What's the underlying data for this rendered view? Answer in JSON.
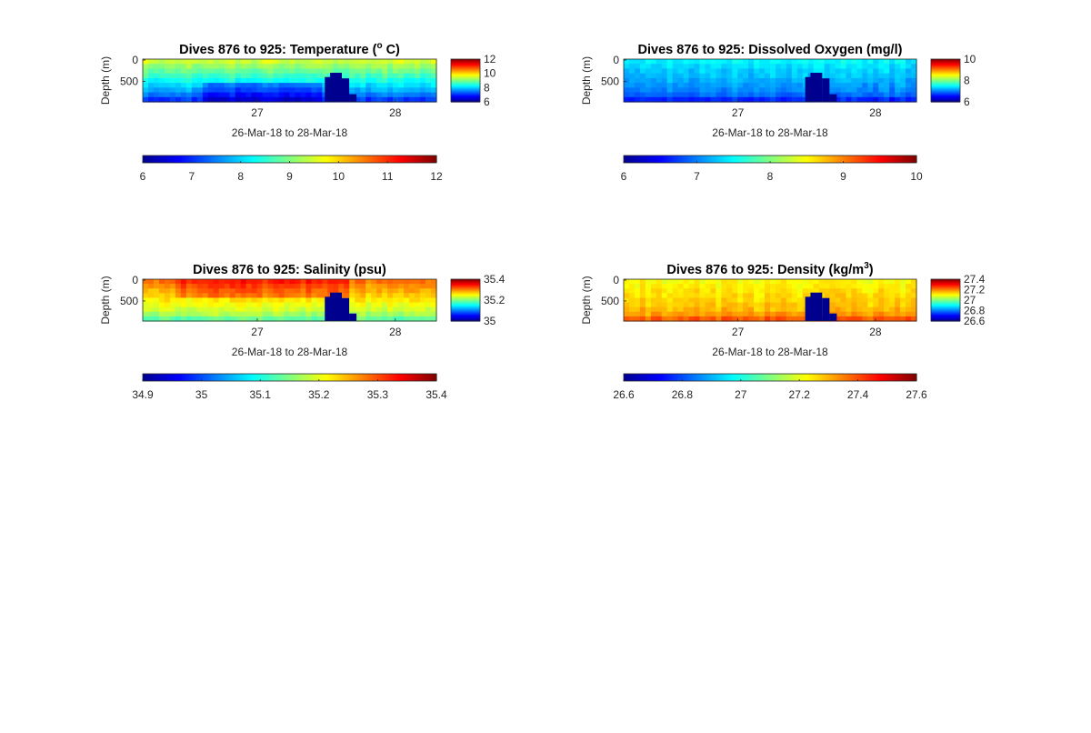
{
  "colormap": [
    "#00008f",
    "#0000ff",
    "#00ffff",
    "#ffff00",
    "#ff0000",
    "#800000"
  ],
  "panels": [
    {
      "title_parts": [
        "Dives 876 to 925: Temperature (",
        "o",
        " C)"
      ],
      "title_sup_index": 1,
      "xlabel": "26-Mar-18 to 28-Mar-18",
      "ylabel": "Depth (m)",
      "x_ticks": [
        "27",
        "28"
      ],
      "y_ticks": [
        "0",
        "500"
      ],
      "cbar_right_ticks": [
        "12",
        "10",
        "8",
        "6"
      ],
      "cbar_bottom_ticks": [
        "6",
        "7",
        "8",
        "9",
        "10",
        "11",
        "12"
      ],
      "clim": [
        6,
        12
      ],
      "surface_value": 9.6,
      "deep_value": 7.6,
      "bottom_value": 6.9
    },
    {
      "title_parts": [
        "Dives 876 to 925: Dissolved Oxygen (mg/l)"
      ],
      "title_sup_index": -1,
      "xlabel": "26-Mar-18 to 28-Mar-18",
      "ylabel": "Depth (m)",
      "x_ticks": [
        "27",
        "28"
      ],
      "y_ticks": [
        "0",
        "500"
      ],
      "cbar_right_ticks": [
        "10",
        "8",
        "6"
      ],
      "cbar_bottom_ticks": [
        "6",
        "7",
        "8",
        "9",
        "10"
      ],
      "clim": [
        6,
        10
      ],
      "surface_value": 7.5,
      "deep_value": 7.0,
      "bottom_value": 6.5
    },
    {
      "title_parts": [
        "Dives 876 to 925: Salinity (psu)"
      ],
      "title_sup_index": -1,
      "xlabel": "26-Mar-18 to 28-Mar-18",
      "ylabel": "Depth (m)",
      "x_ticks": [
        "27",
        "28"
      ],
      "y_ticks": [
        "0",
        "500"
      ],
      "cbar_right_ticks": [
        "35.4",
        "35.2",
        "35"
      ],
      "cbar_bottom_ticks": [
        "34.9",
        "35",
        "35.1",
        "35.2",
        "35.3",
        "35.4"
      ],
      "clim": [
        34.9,
        35.4
      ],
      "surface_value": 35.29,
      "deep_value": 35.18,
      "bottom_value": 35.12
    },
    {
      "title_parts": [
        "Dives 876 to 925: Density (kg/m",
        "3",
        ")"
      ],
      "title_sup_index": 1,
      "xlabel": "26-Mar-18 to 28-Mar-18",
      "ylabel": "Depth (m)",
      "x_ticks": [
        "27",
        "28"
      ],
      "y_ticks": [
        "0",
        "500"
      ],
      "cbar_right_ticks": [
        "27.4",
        "27.2",
        "27",
        "26.8",
        "26.6"
      ],
      "cbar_bottom_ticks": [
        "26.6",
        "26.8",
        "27",
        "27.2",
        "27.4",
        "27.6"
      ],
      "clim": [
        26.6,
        27.6
      ],
      "surface_value": 27.22,
      "deep_value": 27.3,
      "bottom_value": 27.42
    }
  ],
  "chart_data": [
    {
      "type": "heatmap",
      "title": "Dives 876 to 925: Temperature (o C)",
      "xlabel": "26-Mar-18 to 28-Mar-18",
      "ylabel": "Depth (m)",
      "x_range": [
        "26-Mar-18",
        "28-Mar-18"
      ],
      "x_ticks": [
        "27",
        "28"
      ],
      "y_ticks": [
        0,
        500
      ],
      "y_reversed": true,
      "colorbar_range": [
        6,
        12
      ],
      "approx_values": {
        "surface": 9.6,
        "deep": 7.6,
        "near_bottom": 6.9
      }
    },
    {
      "type": "heatmap",
      "title": "Dives 876 to 925: Dissolved Oxygen (mg/l)",
      "xlabel": "26-Mar-18 to 28-Mar-18",
      "ylabel": "Depth (m)",
      "x_range": [
        "26-Mar-18",
        "28-Mar-18"
      ],
      "x_ticks": [
        "27",
        "28"
      ],
      "y_ticks": [
        0,
        500
      ],
      "y_reversed": true,
      "colorbar_range": [
        6,
        10
      ],
      "approx_values": {
        "surface": 7.5,
        "deep": 7.0,
        "near_bottom": 6.5
      }
    },
    {
      "type": "heatmap",
      "title": "Dives 876 to 925: Salinity (psu)",
      "xlabel": "26-Mar-18 to 28-Mar-18",
      "ylabel": "Depth (m)",
      "x_range": [
        "26-Mar-18",
        "28-Mar-18"
      ],
      "x_ticks": [
        "27",
        "28"
      ],
      "y_ticks": [
        0,
        500
      ],
      "y_reversed": true,
      "colorbar_range": [
        34.9,
        35.4
      ],
      "approx_values": {
        "surface": 35.29,
        "deep": 35.18,
        "near_bottom": 35.12
      }
    },
    {
      "type": "heatmap",
      "title": "Dives 876 to 925: Density (kg/m3)",
      "xlabel": "26-Mar-18 to 28-Mar-18",
      "ylabel": "Depth (m)",
      "x_range": [
        "26-Mar-18",
        "28-Mar-18"
      ],
      "x_ticks": [
        "27",
        "28"
      ],
      "y_ticks": [
        0,
        500
      ],
      "y_reversed": true,
      "colorbar_range": [
        26.6,
        27.6
      ],
      "approx_values": {
        "surface": 27.22,
        "deep": 27.3,
        "near_bottom": 27.42
      }
    }
  ]
}
